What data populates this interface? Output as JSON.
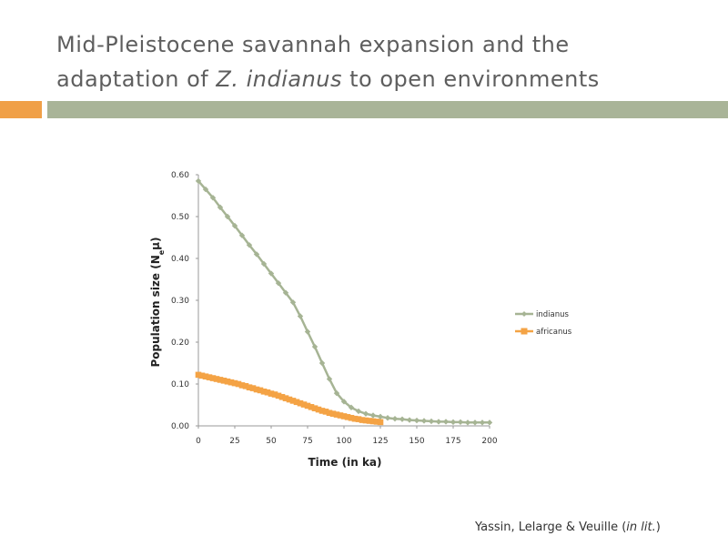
{
  "slide": {
    "title_line1": "Mid-Pleistocene savannah expansion and the",
    "title_line2_pre": "adaptation of ",
    "title_line2_italic": "Z. indianus",
    "title_line2_post": " to open environments",
    "citation_pre": "Yassin, Lelarge & Veuille (",
    "citation_italic": "in lit.",
    "citation_post": ")"
  },
  "colors": {
    "title": "#5e5e5e",
    "bar_orange": "#f0a048",
    "bar_green": "#a9b498",
    "indianus": "#a6b494",
    "africanus": "#f4a345"
  },
  "chart_data": {
    "type": "line",
    "xlabel": "Time (in ka)",
    "ylabel_main": "Population size (N",
    "ylabel_sub": "e",
    "ylabel_mu": "μ",
    "ylabel_close": ")",
    "xlim": [
      0,
      200
    ],
    "ylim": [
      0,
      0.6
    ],
    "x_ticks": [
      "0",
      "25",
      "50",
      "75",
      "100",
      "125",
      "150",
      "175",
      "200"
    ],
    "y_ticks": [
      "0.00",
      "0.10",
      "0.20",
      "0.30",
      "0.40",
      "0.50",
      "0.60"
    ],
    "legend_position": "right",
    "grid": false,
    "series": [
      {
        "name": "indianus",
        "marker": "diamond",
        "x": [
          0,
          5,
          10,
          15,
          20,
          25,
          30,
          35,
          40,
          45,
          50,
          55,
          60,
          65,
          70,
          75,
          80,
          85,
          90,
          95,
          100,
          105,
          110,
          115,
          120,
          125,
          130,
          135,
          140,
          145,
          150,
          155,
          160,
          165,
          170,
          175,
          180,
          185,
          190,
          195,
          200
        ],
        "y": [
          0.585,
          0.565,
          0.545,
          0.522,
          0.5,
          0.478,
          0.455,
          0.432,
          0.41,
          0.387,
          0.364,
          0.341,
          0.318,
          0.295,
          0.262,
          0.225,
          0.189,
          0.15,
          0.112,
          0.078,
          0.058,
          0.044,
          0.035,
          0.029,
          0.025,
          0.022,
          0.019,
          0.017,
          0.016,
          0.014,
          0.013,
          0.012,
          0.011,
          0.01,
          0.01,
          0.009,
          0.009,
          0.008,
          0.008,
          0.008,
          0.008
        ]
      },
      {
        "name": "africanus",
        "marker": "square",
        "x": [
          0,
          2.5,
          5,
          7.5,
          10,
          12.5,
          15,
          17.5,
          20,
          22.5,
          25,
          27.5,
          30,
          32.5,
          35,
          37.5,
          40,
          42.5,
          45,
          47.5,
          50,
          52.5,
          55,
          57.5,
          60,
          62.5,
          65,
          67.5,
          70,
          72.5,
          75,
          77.5,
          80,
          82.5,
          85,
          87.5,
          90,
          92.5,
          95,
          97.5,
          100,
          102.5,
          105,
          107.5,
          110,
          112.5,
          115,
          117.5,
          120,
          122.5,
          125
        ],
        "y": [
          0.122,
          0.12,
          0.118,
          0.116,
          0.114,
          0.112,
          0.11,
          0.108,
          0.106,
          0.104,
          0.102,
          0.1,
          0.097,
          0.095,
          0.092,
          0.09,
          0.087,
          0.085,
          0.082,
          0.08,
          0.077,
          0.075,
          0.072,
          0.069,
          0.066,
          0.063,
          0.06,
          0.057,
          0.054,
          0.051,
          0.048,
          0.045,
          0.042,
          0.039,
          0.036,
          0.034,
          0.031,
          0.029,
          0.027,
          0.025,
          0.023,
          0.021,
          0.019,
          0.017,
          0.016,
          0.014,
          0.013,
          0.012,
          0.011,
          0.01,
          0.009
        ]
      }
    ]
  }
}
